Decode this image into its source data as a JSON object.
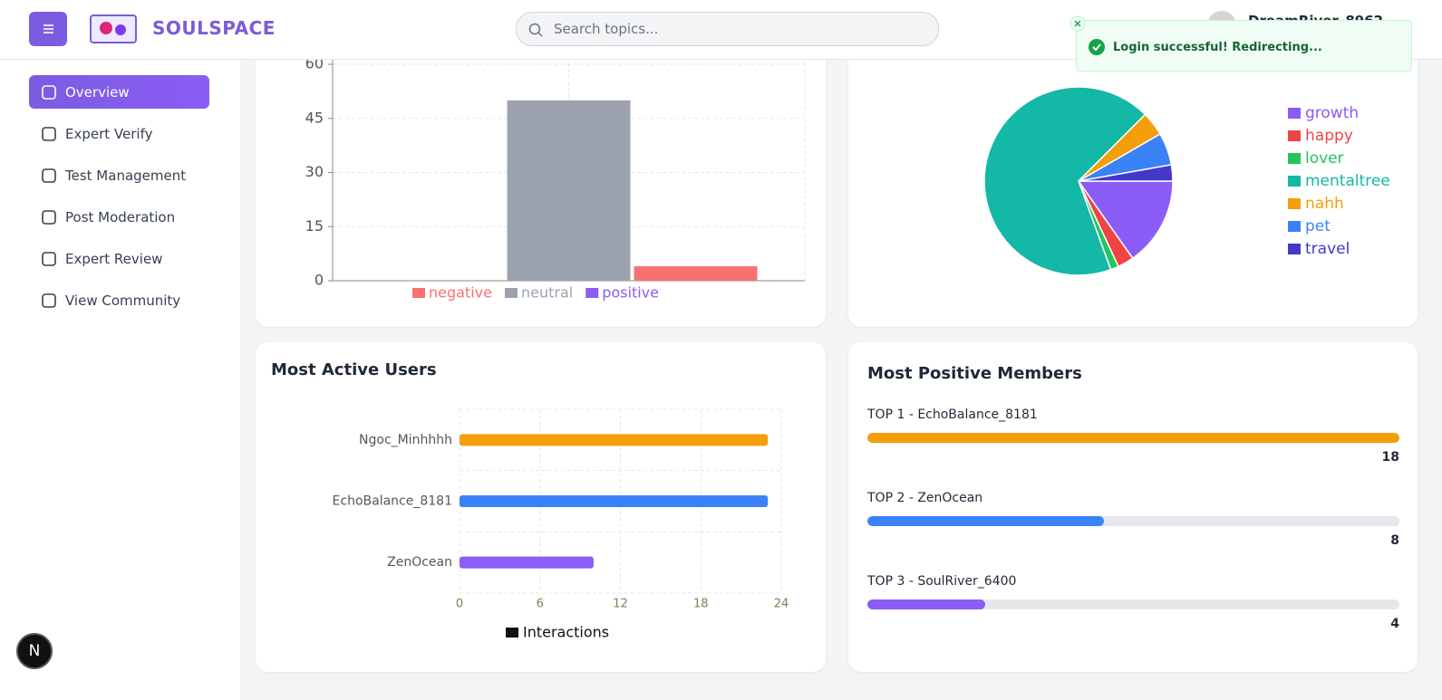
{
  "header": {
    "brand": "SOULSPACE",
    "search_placeholder": "Search topics...",
    "user": "DreamRiver_8962"
  },
  "toast": {
    "message": "Login successful! Redirecting..."
  },
  "sidebar": {
    "items": [
      "Overview",
      "Expert Verify",
      "Test Management",
      "Post Moderation",
      "Expert Review",
      "View Community"
    ],
    "active": 0
  },
  "sentiment_chart": {
    "type": "bar",
    "series": [
      {
        "name": "negative",
        "color": "#f87171",
        "values": [
          4
        ]
      },
      {
        "name": "neutral",
        "color": "#9ca3af",
        "values": [
          50
        ]
      },
      {
        "name": "positive",
        "color": "#8b5cf6",
        "values": [
          0
        ]
      }
    ],
    "ylim": [
      0,
      60
    ],
    "yticks": [
      0,
      15,
      30,
      45,
      60
    ],
    "grid": true
  },
  "topic_chart": {
    "type": "pie",
    "categories": [
      "growth",
      "happy",
      "lover",
      "mentaltree",
      "nahh",
      "pet",
      "travel"
    ],
    "values": [
      11,
      2,
      1,
      49,
      3,
      4,
      2
    ],
    "colors": [
      "#8b5cf6",
      "#ef4444",
      "#22c55e",
      "#14b8a6",
      "#f59e0b",
      "#3b82f6",
      "#4338ca"
    ]
  },
  "active_users_chart": {
    "type": "hbar",
    "title": "Most Active Users",
    "categories": [
      "Ngoc_Minhhhh",
      "EchoBalance_8181",
      "ZenOcean"
    ],
    "series": [
      {
        "name": "Interactions",
        "color": "#111111",
        "values": [
          23,
          23,
          10
        ]
      }
    ],
    "colors": [
      "#f59e0b",
      "#3b82f6",
      "#8b5cf6"
    ],
    "xlim": [
      0,
      24
    ],
    "xticks": [
      0,
      6,
      12,
      18,
      24
    ],
    "grid": true
  },
  "positive_members": {
    "title": "Most Positive Members",
    "items": [
      {
        "label": "TOP 1 - EchoBalance_8181",
        "value": 18,
        "color": "#f59e0b"
      },
      {
        "label": "TOP 2 - ZenOcean",
        "value": 8,
        "color": "#3b82f6"
      },
      {
        "label": "TOP 3 - SoulRiver_6400",
        "value": 4,
        "color": "#8b5cf6"
      }
    ]
  },
  "badge": "N"
}
